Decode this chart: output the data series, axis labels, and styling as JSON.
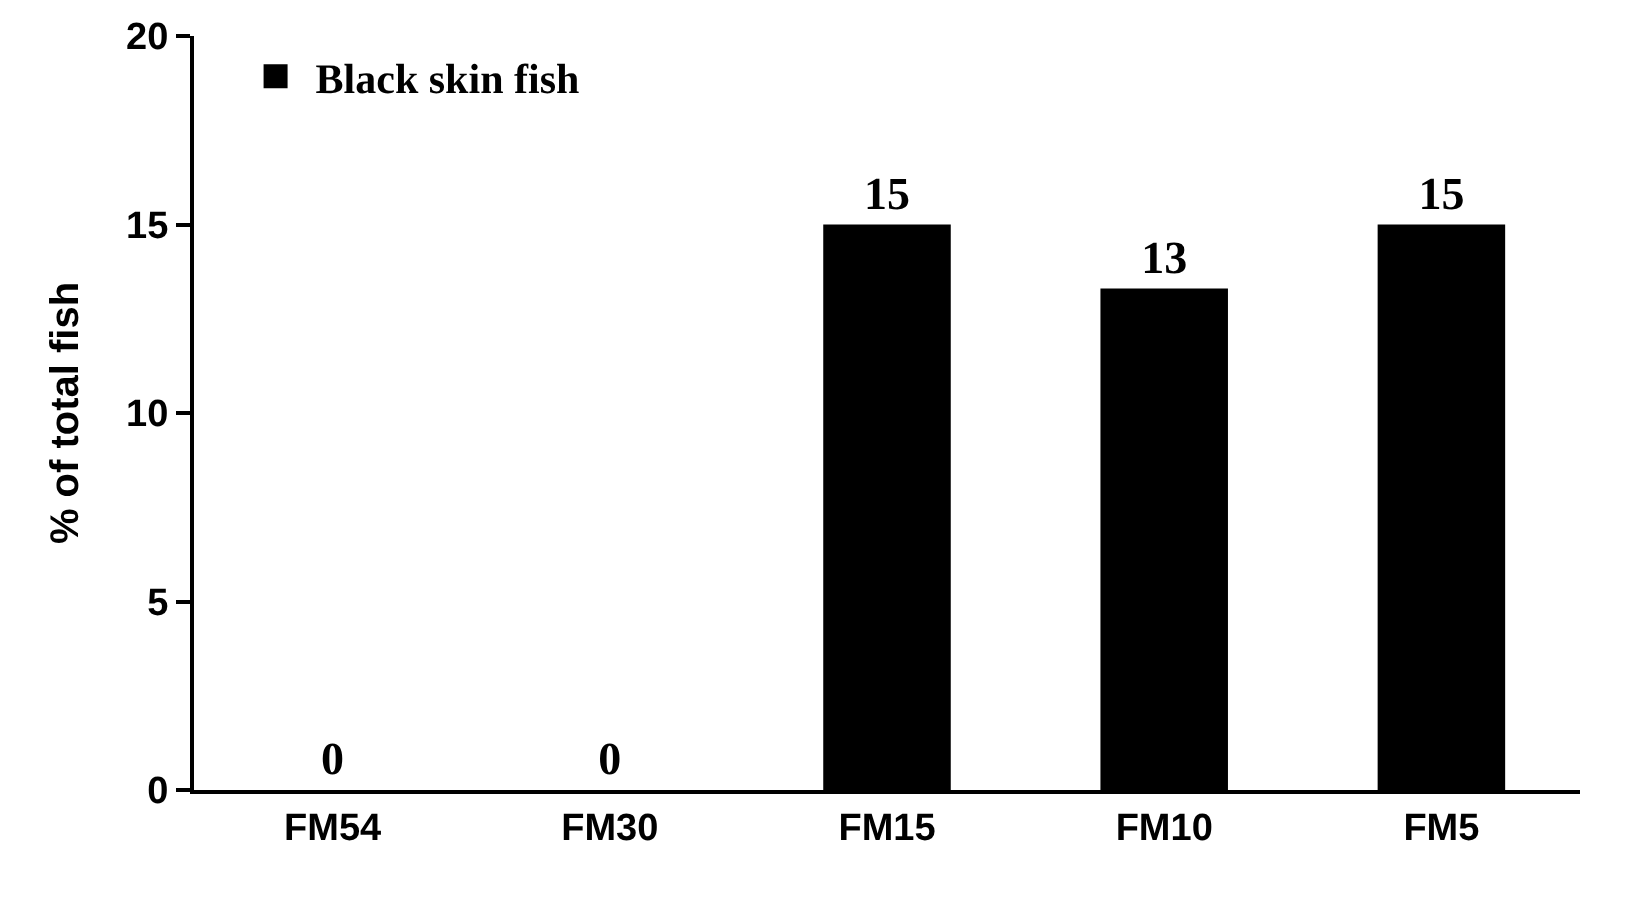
{
  "chart_data": {
    "type": "bar",
    "ylabel": "% of total fish",
    "categories": [
      "FM54",
      "FM30",
      "FM15",
      "FM10",
      "FM5"
    ],
    "series": [
      {
        "name": "Black skin fish",
        "color": "#000000",
        "values": [
          0,
          0,
          15,
          13.3,
          15
        ],
        "value_labels": [
          "0",
          "0",
          "15",
          "13",
          "15"
        ]
      }
    ],
    "ylim": [
      0,
      20
    ],
    "yticks": [
      0,
      5,
      10,
      15,
      20
    ],
    "grid": false,
    "legend": "top left"
  }
}
